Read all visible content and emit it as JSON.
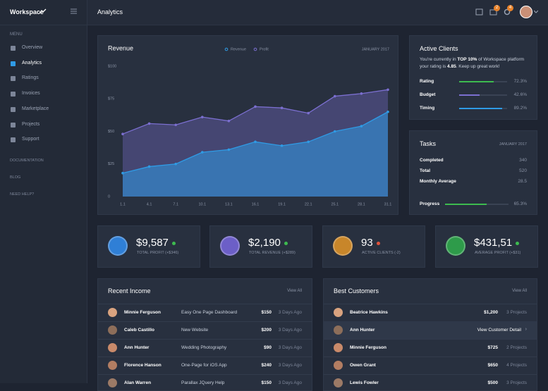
{
  "sidebar": {
    "brand": "Workspace",
    "menu_heading": "MENU",
    "menu": [
      "Overview",
      "Analytics",
      "Ratings",
      "Invoices",
      "Marketplace",
      "Projects",
      "Support"
    ],
    "sections": [
      "DOCUMENTATION",
      "BLOG",
      "NEED HELP?"
    ]
  },
  "topbar": {
    "title": "Analytics",
    "badges": [
      "2",
      "4"
    ]
  },
  "chart_data": {
    "type": "area",
    "title": "Revenue",
    "subtitle": "JANUARY 2017",
    "categories": [
      "1.1",
      "4.1",
      "7.1",
      "10.1",
      "13.1",
      "16.1",
      "19.1",
      "22.1",
      "25.1",
      "28.1",
      "31.1"
    ],
    "series": [
      {
        "name": "Revenue",
        "color": "#2f9be5",
        "values": [
          18,
          23,
          25,
          34,
          36,
          42,
          39,
          42,
          50,
          54,
          65
        ]
      },
      {
        "name": "Profit",
        "color": "#7b6fd0",
        "values": [
          48,
          56,
          55,
          61,
          58,
          69,
          68,
          64,
          77,
          79,
          82
        ]
      }
    ],
    "ylim": [
      0,
      100
    ],
    "yticks": [
      0,
      {
        "value": 25,
        "label": "$25"
      },
      {
        "value": 50,
        "label": "$50"
      },
      {
        "value": 75,
        "label": "$75"
      },
      {
        "value": 100,
        "label": "$100"
      }
    ]
  },
  "active_clients": {
    "title": "Active Clients",
    "text": [
      "You're currently in ",
      "TOP 10%",
      " of Workspace platform your rating is ",
      "4.85",
      ". Keep up great work!"
    ],
    "metrics": [
      {
        "label": "Rating",
        "value": 72.3,
        "value_label": "72.3%",
        "color": "#3dbb4f"
      },
      {
        "label": "Budget",
        "value": 42.6,
        "value_label": "42.6%",
        "color": "#7b6fd0"
      },
      {
        "label": "Timing",
        "value": 89.2,
        "value_label": "89.2%",
        "color": "#2f9be5"
      }
    ]
  },
  "tasks": {
    "title": "Tasks",
    "date": "JANUARY 2017",
    "rows": [
      {
        "label": "Completed",
        "value": "340"
      },
      {
        "label": "Total",
        "value": "520"
      },
      {
        "label": "Monthly Average",
        "value": "28.5"
      }
    ],
    "progress": {
      "label": "Progress",
      "value": 65.3,
      "value_label": "65.3%",
      "color": "#3dbb4f"
    }
  },
  "stats": [
    {
      "value": "$9,587",
      "label": "TOTAL PROFIT (+$346)",
      "color": "#2f7fd6",
      "dot": "#3dbb4f"
    },
    {
      "value": "$2,190",
      "label": "TOTAL REVENUE (+$289)",
      "color": "#6c5fc7",
      "dot": "#3dbb4f"
    },
    {
      "value": "93",
      "label": "ACTIVE CLIENTS (-2)",
      "color": "#c8862a",
      "dot": "#e0533c"
    },
    {
      "value": "$431,51",
      "label": "AVERAGE PROFIT (+$31)",
      "color": "#2e9b4a",
      "dot": "#3dbb4f"
    }
  ],
  "recent_income": {
    "title": "Recent Income",
    "link": "View All",
    "rows": [
      {
        "name": "Minnie Ferguson",
        "project": "Easy One Page Dashboard",
        "amount": "$150",
        "date": "3 Days Ago"
      },
      {
        "name": "Caleb Castillo",
        "project": "New Website",
        "amount": "$200",
        "date": "3 Days Ago"
      },
      {
        "name": "Ann Hunter",
        "project": "Wedding Photography",
        "amount": "$90",
        "date": "3 Days Ago"
      },
      {
        "name": "Florence Hanson",
        "project": "One-Page for iOS App",
        "amount": "$240",
        "date": "3 Days Ago"
      },
      {
        "name": "Alan Warren",
        "project": "Parallax JQuery Help",
        "amount": "$150",
        "date": "3 Days Ago"
      }
    ]
  },
  "best_customers": {
    "title": "Best Customers",
    "link": "View All",
    "rows": [
      {
        "name": "Beatrice Hawkins",
        "amount": "$1,200",
        "projects": "3 Projects"
      },
      {
        "name": "Ann Hunter",
        "action": "View Customer Detail"
      },
      {
        "name": "Minnie Ferguson",
        "amount": "$725",
        "projects": "2 Projects"
      },
      {
        "name": "Owen Grant",
        "amount": "$650",
        "projects": "4 Projects"
      },
      {
        "name": "Lewis Fowler",
        "amount": "$500",
        "projects": "3 Projects"
      }
    ]
  }
}
